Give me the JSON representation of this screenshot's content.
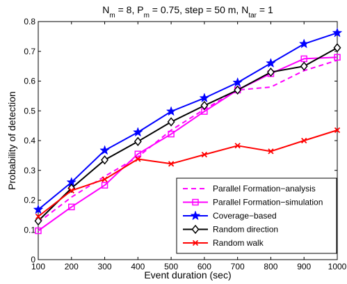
{
  "chart_data": {
    "type": "line",
    "title_parts": [
      {
        "t": "N",
        "sub": false
      },
      {
        "t": "m",
        "sub": true
      },
      {
        "t": " = 8, P",
        "sub": false
      },
      {
        "t": "m",
        "sub": true
      },
      {
        "t": " = 0.75, step = 50 m, N",
        "sub": false
      },
      {
        "t": "tar",
        "sub": true
      },
      {
        "t": " = 1",
        "sub": false
      }
    ],
    "xlabel": "Event duration (sec)",
    "ylabel": "Probability of detection",
    "xlim": [
      100,
      1000
    ],
    "ylim": [
      0,
      0.8
    ],
    "xticks": [
      100,
      200,
      300,
      400,
      500,
      600,
      700,
      800,
      900,
      1000
    ],
    "yticks": [
      0,
      0.1,
      0.2,
      0.3,
      0.4,
      0.5,
      0.6,
      0.7,
      0.8
    ],
    "ytick_labels": [
      "0",
      "0.1",
      "0.2",
      "0.3",
      "0.4",
      "0.5",
      "0.6",
      "0.7",
      "0.8"
    ],
    "grid": false,
    "legend_position": "bottom-right",
    "x": [
      100,
      200,
      300,
      400,
      500,
      600,
      700,
      800,
      900,
      1000
    ],
    "series": [
      {
        "name": "Parallel Formation−analysis",
        "color": "#ff00ff",
        "dash": true,
        "marker": "none",
        "values": [
          0.125,
          0.21,
          0.28,
          0.345,
          0.435,
          0.505,
          0.57,
          0.58,
          0.635,
          0.67
        ]
      },
      {
        "name": "Parallel Formation−simulation",
        "color": "#ff00ff",
        "dash": false,
        "marker": "square",
        "values": [
          0.097,
          0.177,
          0.25,
          0.355,
          0.422,
          0.498,
          0.57,
          0.625,
          0.675,
          0.68
        ]
      },
      {
        "name": "Coverage−based",
        "color": "#0000ff",
        "dash": false,
        "marker": "star",
        "values": [
          0.168,
          0.26,
          0.367,
          0.428,
          0.498,
          0.543,
          0.595,
          0.66,
          0.725,
          0.762
        ]
      },
      {
        "name": "Random direction",
        "color": "#000000",
        "dash": false,
        "marker": "diamond",
        "values": [
          0.13,
          0.24,
          0.335,
          0.397,
          0.463,
          0.518,
          0.57,
          0.63,
          0.65,
          0.712
        ]
      },
      {
        "name": "Random walk",
        "color": "#ff0000",
        "dash": false,
        "marker": "x",
        "values": [
          0.145,
          0.232,
          0.27,
          0.338,
          0.322,
          0.353,
          0.383,
          0.364,
          0.4,
          0.435
        ]
      }
    ]
  }
}
